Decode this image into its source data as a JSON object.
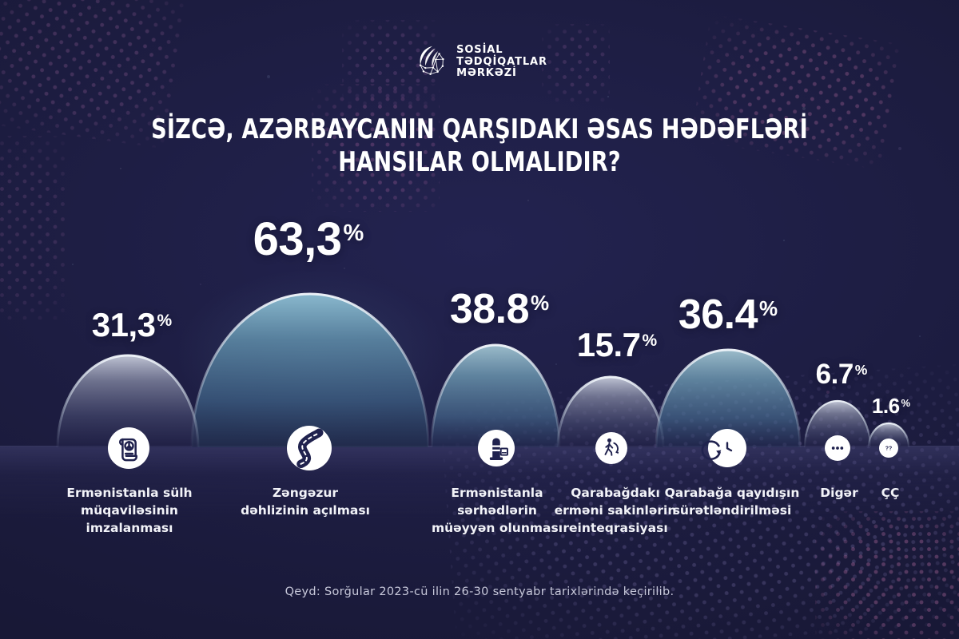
{
  "brand": {
    "name_lines": [
      "SOSİAL",
      "TƏDQİQATLAR",
      "MƏRKƏZİ"
    ],
    "emblem": "social-research-center-logo"
  },
  "title": {
    "line1": "SİZCƏ, AZƏRBAYCANIN QARŞIDAKI ƏSAS HƏDƏFLƏRİ",
    "line2": "HANSILAR OLMALIDIR?"
  },
  "note": "Qeyd: Sorğular 2023-cü ilin 26-30 sentyabr tarixlərində keçirilib.",
  "chart_data": {
    "type": "bar",
    "subtype": "dome-pictorial",
    "title": "Sizcə, Azərbaycanın qarşıdakı əsas hədəfləri hansılar olmalıdır?",
    "unit": "%",
    "values": [
      31.3,
      63.3,
      38.8,
      15.7,
      36.4,
      6.7,
      1.6
    ],
    "value_labels": [
      "31,3",
      "63,3",
      "38.8",
      "15.7",
      "36.4",
      "6.7",
      "1.6"
    ],
    "categories": [
      "Ermənistanla sülh müqaviləsinin imzalanması",
      "Zəngəzur dəhlizinin açılması",
      "Ermənistanla sərhədlərin müəyyən olunması",
      "Qarabağdakı erməni sakinlərin reinteqrasiyası",
      "Qarabağa qayıdışın sürətləndirilməsi",
      "Digər",
      "ÇÇ"
    ],
    "category_lines": [
      [
        "Ermənistanla sülh",
        "müqaviləsinin",
        "imzalanması"
      ],
      [
        "Zəngəzur",
        "dəhlizinin açılması"
      ],
      [
        "Ermənistanla",
        "sərhədlərin",
        "müəyyən olunması"
      ],
      [
        "Qarabağdakı",
        "erməni sakinlərin",
        "reinteqrasiyası"
      ],
      [
        "Qarabağa qayıdışın",
        "sürətləndirilməsi"
      ],
      [
        "Digər"
      ],
      [
        "ÇÇ"
      ]
    ],
    "icons": [
      "peace-treaty-icon",
      "winding-road-icon",
      "border-pillar-icon",
      "walking-person-icon",
      "clock-rewind-icon",
      "ellipsis-icon",
      "question-marks-icon"
    ],
    "colors": {
      "background": "#1b1b3c",
      "dome_teal": "#6f9fb9",
      "dome_gray": "#9aa0b5",
      "icon_glyph": "#20224e",
      "text": "#ffffff",
      "note_text": "#c7c8da"
    },
    "palette": [
      "gray",
      "teal-deep",
      "teal",
      "gray",
      "teal",
      "gray",
      "gray"
    ],
    "legend": "none",
    "grid": "off"
  }
}
